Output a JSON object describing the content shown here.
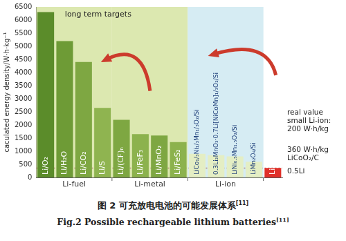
{
  "chart_data": {
    "type": "bar",
    "y_label": "caculated energy density/W·h·kg⁻¹",
    "categories": [
      "Li/O₂",
      "Li/H₂O",
      "Li/CO₂",
      "Li/S",
      "Li/(CF)ₙ",
      "Li/FeF₃",
      "Li/MnO₂",
      "Li/FeS₂",
      "LiCo₁/₃Ni₁/₃Mn₁/₃O₂/Si",
      "0.3Li₂MnO₃·0.7Li[NiCoMn]₁/₃O₂/Si",
      "LiNi₀.₅Mn₁.₅O₂/Si",
      "LiMn₂O₄/Si",
      "Li-ion"
    ],
    "values": [
      6300,
      5200,
      4400,
      2650,
      2200,
      1650,
      1600,
      1350,
      900,
      850,
      800,
      600,
      360
    ],
    "colors": [
      "#5b8c2a",
      "#6e9b36",
      "#7ea742",
      "#8fb450",
      "#7ea742",
      "#8cb24d",
      "#7ea742",
      "#8cb24d",
      "#e4eec4",
      "#e4eec4",
      "#e4eec4",
      "#e4eec4",
      "#e0302a"
    ],
    "ylim": [
      0,
      6500
    ],
    "yticks": [
      0,
      500,
      1000,
      1500,
      2000,
      2500,
      3000,
      3500,
      4000,
      4500,
      5000,
      5500,
      6000,
      6500
    ],
    "grid": false,
    "tick_labels": "y",
    "reference_line": 360,
    "groups": [
      {
        "name": "Li-fuel",
        "members": [
          "Li/O₂",
          "Li/H₂O",
          "Li/CO₂",
          "Li/S"
        ]
      },
      {
        "name": "Li-metal",
        "members": [
          "Li/(CF)ₙ",
          "Li/FeF₃",
          "Li/MnO₂",
          "Li/FeS₂"
        ]
      },
      {
        "name": "Li-ion",
        "members": [
          "LiCo₁/₃Ni₁/₃Mn₁/₃O₂/Si",
          "0.3Li₂MnO₃·0.7Li[NiCoMn]₁/₃O₂/Si",
          "LiNi₀.₅Mn₁.₅O₂/Si",
          "LiMn₂O₄/Si"
        ]
      }
    ],
    "annotations": {
      "top": "long term targets",
      "right": [
        [
          "real value",
          "small Li-ion:",
          "200 W·h/kg"
        ],
        [
          "360 W·h/kg",
          "LiCoO₂/C"
        ],
        [
          "0.5Li"
        ]
      ]
    },
    "caption": {
      "zh": "图 2   可充放电电池的可能发展体系",
      "en": "Fig.2   Possible rechargeable lithium batteries",
      "ref": "[11]"
    }
  }
}
